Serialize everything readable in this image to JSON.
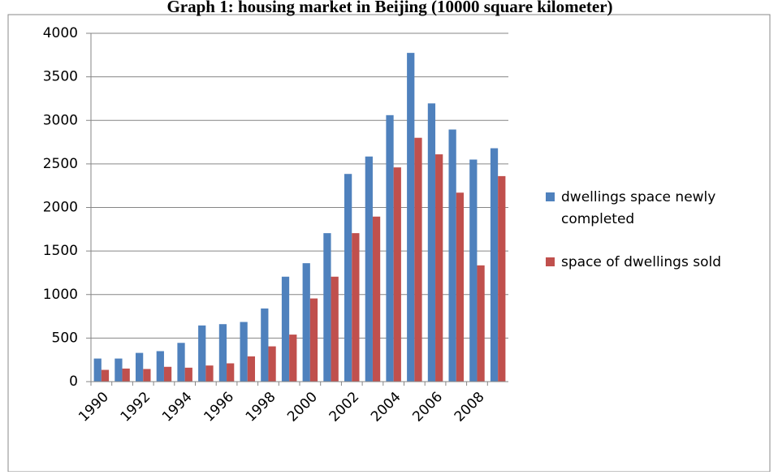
{
  "chart_data": {
    "type": "bar",
    "title": "Graph 1: housing market in Beijing (10000 square kilometer)",
    "categories": [
      "1990",
      null,
      "1992",
      null,
      "1994",
      null,
      "1996",
      null,
      "1998",
      null,
      "2000",
      null,
      "2002",
      null,
      "2004",
      null,
      "2006",
      null,
      "2008",
      null
    ],
    "series": [
      {
        "name": "dwellings space newly completed",
        "color": "#4f81bd",
        "values": [
          265,
          265,
          330,
          350,
          445,
          645,
          660,
          685,
          840,
          1205,
          1360,
          1705,
          2385,
          2585,
          3060,
          3775,
          3195,
          2895,
          2550,
          2680
        ]
      },
      {
        "name": "space of dwellings sold",
        "color": "#c0504d",
        "values": [
          135,
          150,
          145,
          170,
          160,
          185,
          210,
          290,
          405,
          540,
          955,
          1205,
          1705,
          1895,
          2460,
          2800,
          2610,
          2170,
          1335,
          2360
        ]
      }
    ],
    "ylim": [
      0,
      4000
    ],
    "yticks": [
      0,
      500,
      1000,
      1500,
      2000,
      2500,
      3000,
      3500,
      4000
    ],
    "grid": true,
    "legend": "right"
  }
}
